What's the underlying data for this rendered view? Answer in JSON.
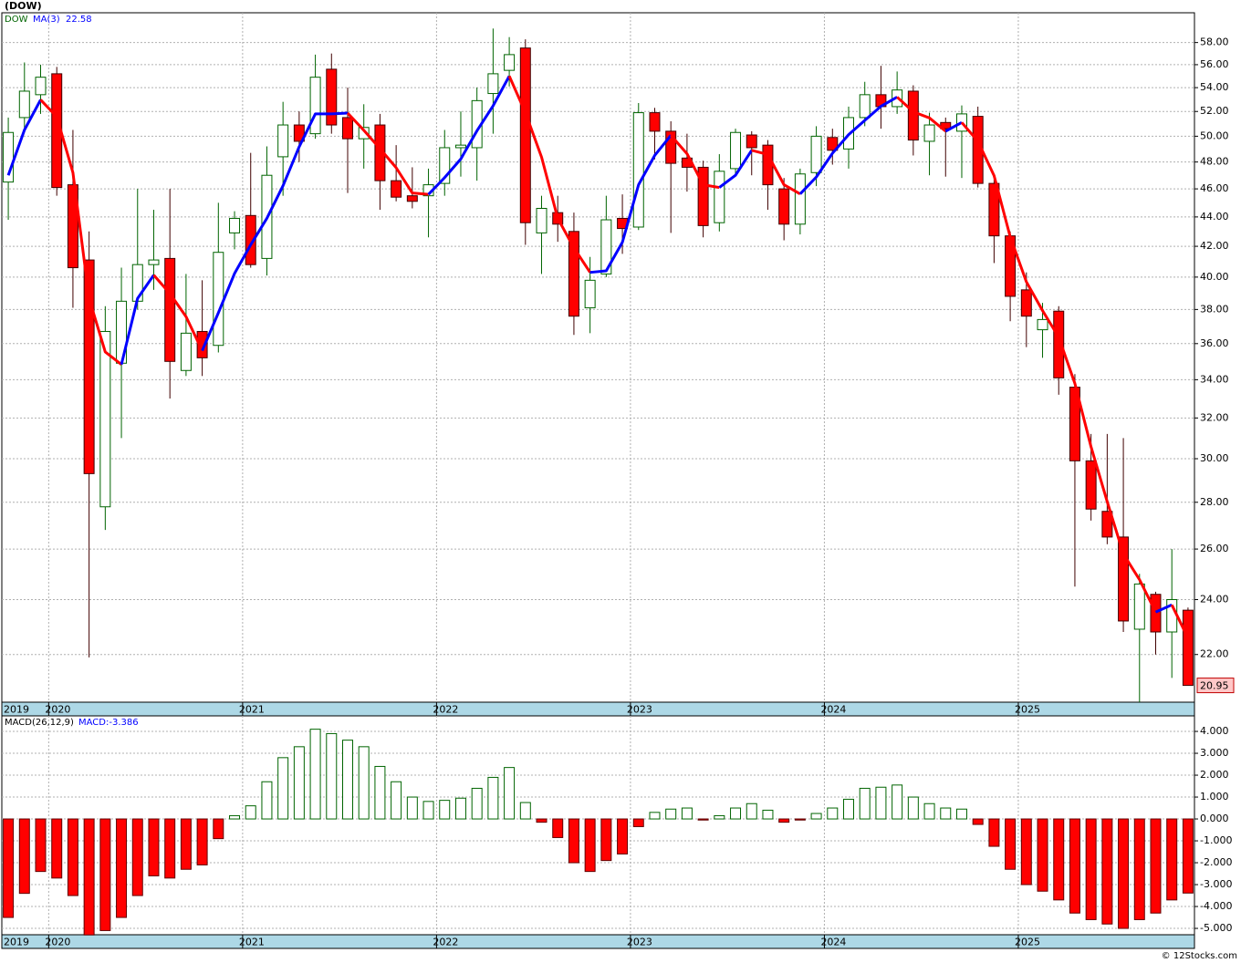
{
  "title": "(DOW)",
  "copyright": "© 12Stocks.com",
  "chart_data": [
    {
      "type": "candlestick",
      "symbol": "DOW",
      "symbol_color": "#006400",
      "categories": [
        "2019",
        null,
        null,
        "2020",
        null,
        null,
        null,
        null,
        null,
        null,
        null,
        null,
        null,
        null,
        null,
        "2021",
        null,
        null,
        null,
        null,
        null,
        null,
        null,
        null,
        null,
        null,
        null,
        "2022",
        null,
        null,
        null,
        null,
        null,
        null,
        null,
        null,
        null,
        null,
        null,
        "2023",
        null,
        null,
        null,
        null,
        null,
        null,
        null,
        null,
        null,
        null,
        null,
        "2024",
        null,
        null,
        null,
        null,
        null,
        null,
        null,
        null,
        null,
        null,
        null,
        "2025",
        null,
        null,
        null,
        null,
        null,
        null,
        null,
        null,
        null,
        null
      ],
      "open": [
        46.5,
        51.5,
        53.4,
        55.2,
        46.3,
        41.1,
        27.8,
        34.9,
        38.5,
        40.8,
        41.2,
        34.5,
        36.7,
        35.9,
        42.9,
        44.1,
        41.2,
        48.4,
        50.9,
        50.2,
        55.6,
        51.5,
        49.8,
        50.9,
        46.6,
        45.5,
        45.5,
        46.4,
        49.1,
        49.1,
        53.5,
        55.5,
        57.5,
        42.9,
        44.3,
        43.0,
        38.1,
        40.2,
        43.9,
        43.3,
        51.9,
        50.4,
        48.3,
        47.6,
        43.6,
        47.5,
        50.1,
        49.3,
        46.0,
        43.5,
        47.2,
        49.9,
        49.0,
        51.5,
        53.4,
        52.4,
        53.7,
        49.6,
        51.1,
        50.4,
        51.6,
        46.4,
        42.7,
        39.2,
        36.8,
        37.9,
        33.6,
        29.9,
        27.6,
        26.5,
        22.9,
        24.2,
        22.8,
        23.6
      ],
      "high": [
        51.5,
        56.2,
        56.0,
        55.8,
        50.5,
        43.0,
        38.2,
        40.6,
        46.0,
        44.5,
        46.0,
        40.2,
        39.8,
        45.0,
        44.4,
        48.7,
        49.2,
        52.8,
        52.0,
        56.9,
        57.0,
        54.0,
        52.6,
        51.8,
        49.3,
        47.6,
        47.5,
        50.5,
        52.0,
        54.0,
        59.3,
        58.5,
        58.3,
        45.5,
        45.5,
        44.3,
        41.3,
        45.5,
        45.6,
        52.7,
        52.3,
        51.2,
        50.2,
        48.1,
        48.6,
        50.6,
        50.4,
        49.7,
        46.8,
        47.5,
        50.8,
        50.6,
        52.4,
        54.5,
        55.9,
        55.4,
        54.2,
        51.9,
        51.5,
        52.5,
        52.4,
        46.7,
        43.0,
        40.3,
        38.4,
        38.2,
        34.3,
        31.2,
        31.2,
        31.0,
        25.0,
        24.3,
        26.0,
        23.7
      ],
      "low": [
        43.8,
        50.5,
        51.8,
        45.5,
        38.1,
        21.9,
        26.8,
        31.0,
        38.0,
        39.2,
        33.0,
        34.2,
        34.2,
        35.5,
        41.8,
        40.6,
        40.1,
        45.5,
        48.0,
        49.8,
        50.2,
        45.7,
        47.5,
        44.5,
        45.1,
        44.6,
        42.6,
        45.5,
        46.9,
        46.6,
        50.2,
        54.1,
        42.1,
        40.2,
        42.3,
        36.5,
        36.6,
        40.0,
        41.5,
        43.1,
        48.2,
        42.9,
        45.8,
        42.6,
        43.0,
        47.0,
        47.0,
        44.5,
        42.4,
        42.8,
        46.2,
        47.8,
        47.5,
        50.8,
        50.6,
        51.8,
        48.5,
        47.0,
        46.9,
        46.8,
        46.1,
        40.9,
        37.3,
        35.8,
        35.2,
        33.2,
        24.5,
        27.2,
        26.2,
        22.8,
        20.4,
        22.0,
        21.2,
        20.95
      ],
      "close": [
        50.3,
        53.7,
        54.9,
        46.1,
        40.6,
        29.3,
        36.7,
        38.5,
        40.8,
        41.1,
        35.0,
        36.6,
        35.2,
        41.6,
        43.9,
        40.8,
        47.0,
        50.9,
        49.6,
        54.9,
        50.9,
        49.8,
        50.7,
        46.6,
        45.4,
        45.1,
        46.3,
        49.1,
        49.3,
        52.9,
        55.2,
        56.9,
        43.6,
        44.6,
        43.5,
        37.6,
        39.8,
        43.8,
        43.2,
        51.9,
        50.4,
        47.9,
        47.6,
        43.4,
        47.3,
        50.3,
        49.1,
        46.3,
        43.5,
        47.1,
        50.0,
        48.9,
        51.5,
        53.4,
        52.4,
        53.8,
        49.7,
        50.9,
        50.6,
        51.8,
        46.4,
        42.7,
        38.8,
        37.6,
        37.4,
        34.1,
        29.9,
        27.7,
        26.5,
        23.2,
        24.6,
        22.8,
        24.0,
        20.95
      ],
      "up_color": "#006400",
      "down_color": "#ff0000",
      "ma": {
        "name": "MA(3)",
        "rising_color": "#0000ff",
        "falling_color": "#ff0000",
        "values": [
          47.0,
          50.5,
          52.97,
          51.57,
          47.2,
          38.67,
          35.53,
          34.83,
          38.67,
          40.13,
          38.97,
          37.57,
          35.6,
          37.8,
          40.23,
          42.1,
          43.9,
          46.23,
          49.17,
          51.8,
          51.8,
          51.87,
          50.47,
          49.03,
          47.57,
          45.7,
          45.6,
          46.83,
          48.23,
          50.43,
          52.47,
          55.0,
          51.9,
          48.37,
          43.9,
          41.9,
          40.3,
          40.4,
          42.27,
          46.3,
          48.5,
          50.07,
          48.63,
          46.3,
          46.1,
          47.0,
          48.9,
          48.57,
          46.3,
          45.63,
          46.87,
          48.67,
          50.13,
          51.27,
          52.43,
          53.2,
          51.97,
          51.47,
          50.4,
          51.1,
          49.6,
          46.97,
          42.63,
          39.7,
          37.93,
          36.37,
          33.8,
          30.57,
          28.03,
          25.8,
          24.77,
          23.53,
          23.8,
          22.58
        ]
      },
      "ylim": [
        20.4,
        60.8
      ],
      "log": true,
      "grid": true,
      "yticks": [
        {
          "value": 22,
          "label": "22.00"
        },
        {
          "value": 24,
          "label": "24.00"
        },
        {
          "value": 26,
          "label": "26.00"
        },
        {
          "value": 28,
          "label": "28.00"
        },
        {
          "value": 30,
          "label": "30.00"
        },
        {
          "value": 32,
          "label": "32.00"
        },
        {
          "value": 34,
          "label": "34.00"
        },
        {
          "value": 36,
          "label": "36.00"
        },
        {
          "value": 38,
          "label": "38.00"
        },
        {
          "value": 40,
          "label": "40.00"
        },
        {
          "value": 42,
          "label": "42.00"
        },
        {
          "value": 44,
          "label": "44.00"
        },
        {
          "value": 46,
          "label": "46.00"
        },
        {
          "value": 48,
          "label": "48.00"
        },
        {
          "value": 50,
          "label": "50.00"
        },
        {
          "value": 52,
          "label": "52.00"
        },
        {
          "value": 54,
          "label": "54.00"
        },
        {
          "value": 56,
          "label": "56.00"
        },
        {
          "value": 58,
          "label": "58.00"
        }
      ]
    },
    {
      "type": "bar",
      "name": "MACD(26,12,9)",
      "label": "MACD:-3.386",
      "label_color": "#0000ff",
      "categories": [
        "2019",
        null,
        null,
        "2020",
        null,
        null,
        null,
        null,
        null,
        null,
        null,
        null,
        null,
        null,
        null,
        "2021",
        null,
        null,
        null,
        null,
        null,
        null,
        null,
        null,
        null,
        null,
        null,
        "2022",
        null,
        null,
        null,
        null,
        null,
        null,
        null,
        null,
        null,
        null,
        null,
        "2023",
        null,
        null,
        null,
        null,
        null,
        null,
        null,
        null,
        null,
        null,
        null,
        "2024",
        null,
        null,
        null,
        null,
        null,
        null,
        null,
        null,
        null,
        null,
        null,
        "2025",
        null,
        null,
        null,
        null,
        null,
        null,
        null,
        null,
        null,
        null
      ],
      "values": [
        -4.5,
        -3.4,
        -2.4,
        -2.7,
        -3.5,
        -5.3,
        -5.1,
        -4.5,
        -3.5,
        -2.6,
        -2.7,
        -2.3,
        -2.1,
        -0.9,
        0.15,
        0.6,
        1.7,
        2.8,
        3.3,
        4.1,
        3.9,
        3.6,
        3.3,
        2.4,
        1.7,
        1.0,
        0.8,
        0.85,
        0.95,
        1.4,
        1.9,
        2.35,
        0.75,
        -0.15,
        -0.85,
        -2.0,
        -2.4,
        -1.9,
        -1.6,
        -0.35,
        0.3,
        0.45,
        0.5,
        -0.05,
        0.15,
        0.5,
        0.7,
        0.4,
        -0.15,
        -0.05,
        0.25,
        0.5,
        0.9,
        1.4,
        1.45,
        1.55,
        1.0,
        0.7,
        0.5,
        0.45,
        -0.25,
        -1.25,
        -2.3,
        -3.0,
        -3.3,
        -3.7,
        -4.3,
        -4.6,
        -4.8,
        -5.0,
        -4.6,
        -4.3,
        -3.7,
        -3.386
      ],
      "positive_color": "#006400",
      "negative_color": "#ff0000",
      "ylim": [
        -5.29,
        4.71
      ],
      "grid": true,
      "yticks": [
        {
          "value": -5,
          "label": "-5.000"
        },
        {
          "value": -4,
          "label": "-4.000"
        },
        {
          "value": -3,
          "label": "-3.000"
        },
        {
          "value": -2,
          "label": "-2.000"
        },
        {
          "value": -1,
          "label": "-1.000"
        },
        {
          "value": 0,
          "label": "0.000"
        },
        {
          "value": 1,
          "label": "1.000"
        },
        {
          "value": 2,
          "label": "2.000"
        },
        {
          "value": 3,
          "label": "3.000"
        },
        {
          "value": 4,
          "label": "4.000"
        }
      ]
    }
  ]
}
